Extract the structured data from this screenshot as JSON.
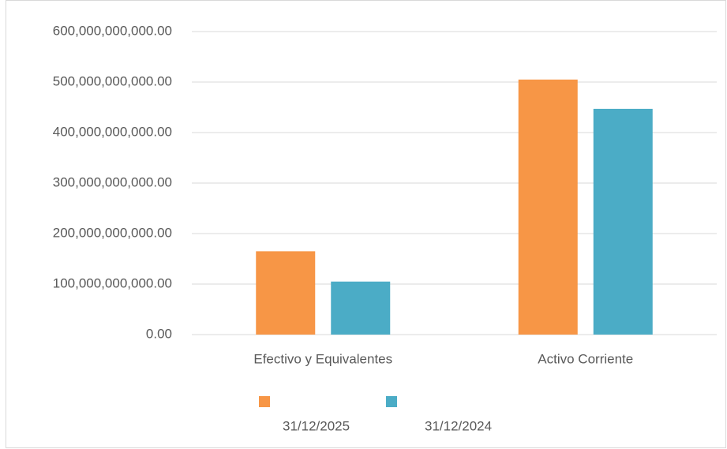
{
  "chart_data": {
    "type": "bar",
    "categories": [
      "Efectivo y Equivalentes",
      "Activo Corriente"
    ],
    "series": [
      {
        "name": "31/12/2025",
        "color": "#f79646",
        "values": [
          165000000000,
          505000000000
        ]
      },
      {
        "name": "31/12/2024",
        "color": "#4bacc6",
        "values": [
          105000000000,
          447000000000
        ]
      }
    ],
    "ylim": [
      0,
      600000000000
    ],
    "yticks": [
      {
        "value": 0,
        "label": "0.00"
      },
      {
        "value": 100000000000,
        "label": "100,000,000,000.00"
      },
      {
        "value": 200000000000,
        "label": "200,000,000,000.00"
      },
      {
        "value": 300000000000,
        "label": "300,000,000,000.00"
      },
      {
        "value": 400000000000,
        "label": "400,000,000,000.00"
      },
      {
        "value": 500000000000,
        "label": "500,000,000,000.00"
      },
      {
        "value": 600000000000,
        "label": "600,000,000,000.00"
      }
    ],
    "grid": true,
    "legend": "bottom"
  }
}
